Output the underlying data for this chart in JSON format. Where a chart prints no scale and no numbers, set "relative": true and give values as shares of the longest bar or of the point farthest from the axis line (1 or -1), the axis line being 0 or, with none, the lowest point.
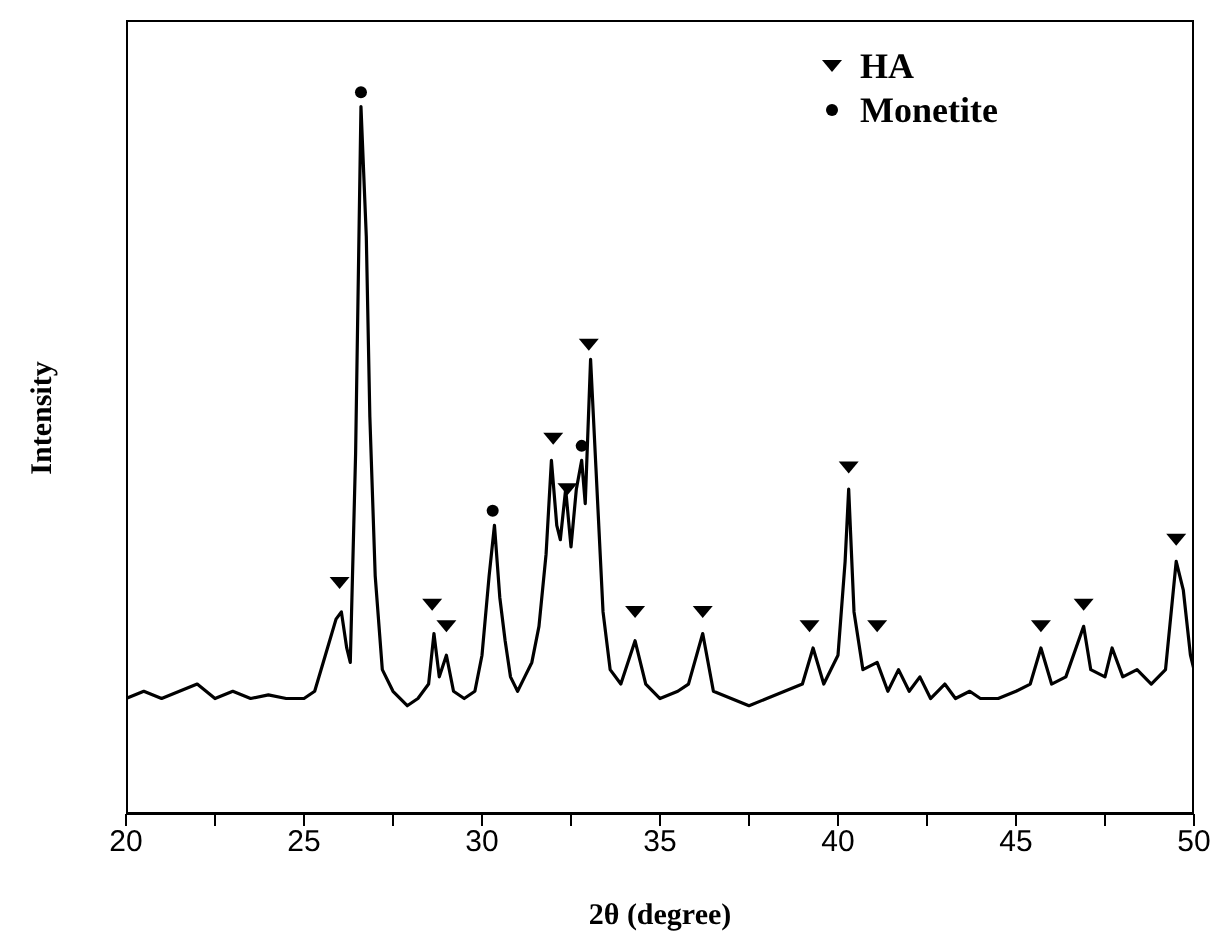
{
  "chart_data": {
    "type": "line",
    "relative": true,
    "xlabel": "2θ (degree)",
    "ylabel": "Intensity",
    "xlim": [
      20,
      50
    ],
    "xticks": [
      20,
      {
        "value": 22.5,
        "label": null
      },
      25,
      {
        "value": 27.5,
        "label": null
      },
      30,
      {
        "value": 32.5,
        "label": null
      },
      35,
      {
        "value": 37.5,
        "label": null
      },
      40,
      {
        "value": 42.5,
        "label": null
      },
      45,
      {
        "value": 47.5,
        "label": null
      },
      50
    ],
    "legend": "top right",
    "grid": false,
    "series": [
      {
        "color": "#000000",
        "x": [
          20,
          20.5,
          21,
          21.5,
          22,
          22.5,
          23,
          23.5,
          24,
          24.5,
          25,
          25.3,
          25.6,
          25.9,
          26.05,
          26.2,
          26.3,
          26.45,
          26.6,
          26.75,
          26.85,
          27.0,
          27.2,
          27.5,
          27.9,
          28.2,
          28.5,
          28.65,
          28.8,
          29.0,
          29.2,
          29.5,
          29.8,
          30.0,
          30.2,
          30.35,
          30.5,
          30.65,
          30.8,
          31.0,
          31.2,
          31.4,
          31.6,
          31.8,
          31.95,
          32.1,
          32.2,
          32.35,
          32.5,
          32.65,
          32.8,
          32.9,
          33.05,
          33.2,
          33.4,
          33.6,
          33.9,
          34.3,
          34.6,
          35.0,
          35.5,
          35.8,
          36.2,
          36.5,
          37.0,
          37.5,
          38.0,
          38.5,
          39.0,
          39.3,
          39.6,
          40.0,
          40.2,
          40.3,
          40.45,
          40.7,
          41.1,
          41.4,
          41.7,
          42.0,
          42.3,
          42.6,
          43.0,
          43.3,
          43.7,
          44.0,
          44.5,
          45.0,
          45.4,
          45.7,
          46.0,
          46.4,
          46.9,
          47.1,
          47.5,
          47.7,
          48.0,
          48.4,
          48.8,
          49.2,
          49.5,
          49.7,
          49.9,
          50
        ],
        "values": [
          0.16,
          0.17,
          0.16,
          0.17,
          0.18,
          0.16,
          0.17,
          0.16,
          0.165,
          0.16,
          0.16,
          0.17,
          0.22,
          0.27,
          0.28,
          0.23,
          0.21,
          0.5,
          0.98,
          0.8,
          0.55,
          0.33,
          0.2,
          0.17,
          0.15,
          0.16,
          0.18,
          0.25,
          0.19,
          0.22,
          0.17,
          0.16,
          0.17,
          0.22,
          0.33,
          0.4,
          0.3,
          0.24,
          0.19,
          0.17,
          0.19,
          0.21,
          0.26,
          0.36,
          0.49,
          0.4,
          0.38,
          0.45,
          0.37,
          0.45,
          0.49,
          0.43,
          0.63,
          0.48,
          0.28,
          0.2,
          0.18,
          0.24,
          0.18,
          0.16,
          0.17,
          0.18,
          0.25,
          0.17,
          0.16,
          0.15,
          0.16,
          0.17,
          0.18,
          0.23,
          0.18,
          0.22,
          0.35,
          0.45,
          0.28,
          0.2,
          0.21,
          0.17,
          0.2,
          0.17,
          0.19,
          0.16,
          0.18,
          0.16,
          0.17,
          0.16,
          0.16,
          0.17,
          0.18,
          0.23,
          0.18,
          0.19,
          0.26,
          0.2,
          0.19,
          0.23,
          0.19,
          0.2,
          0.18,
          0.2,
          0.35,
          0.31,
          0.22,
          0.2
        ]
      },
      {
        "type": "scatter",
        "name": "HA",
        "marker": "triangle",
        "color": "#000000",
        "x": [
          26.0,
          28.6,
          29.0,
          32.0,
          32.4,
          33.0,
          34.3,
          36.2,
          39.2,
          40.3,
          41.1,
          45.7,
          46.9,
          49.5
        ],
        "values": [
          0.32,
          0.29,
          0.26,
          0.52,
          0.45,
          0.65,
          0.28,
          0.28,
          0.26,
          0.48,
          0.26,
          0.26,
          0.29,
          0.38
        ]
      },
      {
        "type": "scatter",
        "name": "Monetite",
        "marker": "circle",
        "color": "#000000",
        "x": [
          26.6,
          30.3,
          32.8
        ],
        "values": [
          1.0,
          0.42,
          0.51
        ]
      }
    ]
  }
}
